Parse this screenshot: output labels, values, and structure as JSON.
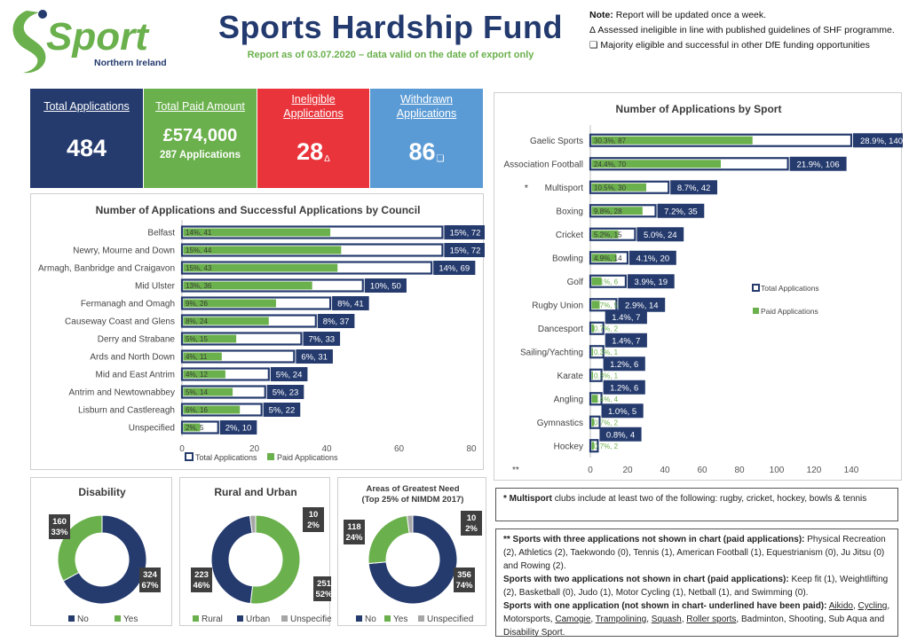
{
  "header": {
    "logo_main": "Sport",
    "logo_sub": "Northern Ireland",
    "title": "Sports Hardship Fund",
    "subtitle": "Report as of 03.07.2020 – data valid on the date of export only",
    "note_label": "Note:",
    "note_1": "Report will be updated once a week.",
    "note_2": "Δ Assessed ineligible in line with published guidelines of SHF programme.",
    "note_3": "❑ Majority eligible and successful in other DfE funding opportunities"
  },
  "kpis": {
    "total_applications_label": "Total Applications",
    "total_applications_value": "484",
    "total_paid_label": "Total Paid Amount",
    "total_paid_value": "£574,000",
    "total_paid_sub": "287 Applications",
    "ineligible_label": "Ineligible Applications",
    "ineligible_value": "28",
    "ineligible_mark": "Δ",
    "withdrawn_label": "Withdrawn Applications",
    "withdrawn_value": "86",
    "withdrawn_mark": "❑"
  },
  "colors": {
    "navy": "#253b6e",
    "green": "#6ab04c",
    "red": "#e8343a",
    "blue": "#5b9bd5",
    "grey": "#a6a6a6"
  },
  "chart_data": [
    {
      "type": "bar",
      "title": "Number of Applications and Successful Applications by Council",
      "orientation": "horizontal",
      "categories": [
        "Belfast",
        "Newry, Mourne and Down",
        "Armagh, Banbridge and Craigavon",
        "Mid Ulster",
        "Fermanagh and Omagh",
        "Causeway Coast and Glens",
        "Derry and Strabane",
        "Ards and North Down",
        "Mid and East Antrim",
        "Antrim and Newtownabbey",
        "Lisburn and Castlereagh",
        "Unspecified"
      ],
      "series": [
        {
          "name": "Total Applications",
          "values": [
            72,
            72,
            69,
            50,
            41,
            37,
            33,
            31,
            24,
            23,
            22,
            10
          ],
          "labels": [
            "15%, 72",
            "15%, 72",
            "14%, 69",
            "10%, 50",
            "8%, 41",
            "8%, 37",
            "7%, 33",
            "6%, 31",
            "5%, 24",
            "5%, 23",
            "5%, 22",
            "2%, 10"
          ]
        },
        {
          "name": "Paid Applications",
          "values": [
            41,
            44,
            43,
            36,
            26,
            24,
            15,
            11,
            12,
            14,
            16,
            5
          ],
          "labels": [
            "14%, 41",
            "15%, 44",
            "15%, 43",
            "13%, 36",
            "9%, 26",
            "8%, 24",
            "5%, 15",
            "4%, 11",
            "4%, 12",
            "5%, 14",
            "6%, 16",
            "2%, 5"
          ]
        }
      ],
      "xlim": [
        0,
        80
      ],
      "xticks": [
        0,
        20,
        40,
        60,
        80
      ],
      "legend": "bottom"
    },
    {
      "type": "bar",
      "title": "Number of Applications by Sport",
      "orientation": "horizontal",
      "categories": [
        "Gaelic Sports",
        "Association Football",
        "Multisport",
        "Boxing",
        "Cricket",
        "Bowling",
        "Golf",
        "Rugby Union",
        "Dancesport",
        "Sailing/Yachting",
        "Karate",
        "Angling",
        "Gymnastics",
        "Hockey"
      ],
      "category_prefix": [
        "",
        "",
        "*",
        "",
        "",
        "",
        "",
        "",
        "",
        "",
        "",
        "",
        "",
        ""
      ],
      "series": [
        {
          "name": "Total Applications",
          "values": [
            140,
            106,
            42,
            35,
            24,
            20,
            19,
            14,
            7,
            7,
            6,
            6,
            5,
            4
          ],
          "labels": [
            "28.9%, 140",
            "21.9%, 106",
            "8.7%, 42",
            "7.2%, 35",
            "5.0%, 24",
            "4.1%, 20",
            "3.9%, 19",
            "2.9%, 14",
            "1.4%, 7",
            "1.4%, 7",
            "1.2%, 6",
            "1.2%, 6",
            "1.0%, 5",
            "0.8%, 4"
          ]
        },
        {
          "name": "Paid Applications",
          "values": [
            87,
            70,
            30,
            28,
            15,
            14,
            6,
            5,
            2,
            1,
            1,
            4,
            2,
            2
          ],
          "labels": [
            "30.3%, 87",
            "24.4%, 70",
            "10.5%, 30",
            "9.8%, 28",
            "5.2%, 15",
            "4.9%, 14",
            "2.1%, 6",
            "1.7%, 5",
            "0.7%, 2",
            "0.3%, 1",
            "0.3%, 1",
            "1.4%, 4",
            "0.7%, 2",
            "0.7%, 2"
          ]
        }
      ],
      "xlim": [
        0,
        140
      ],
      "xticks": [
        0,
        20,
        40,
        60,
        80,
        100,
        120,
        140
      ],
      "axis_note": "**",
      "legend": "right"
    },
    {
      "type": "pie",
      "title": "Disability",
      "slices": [
        {
          "name": "No",
          "value": 324,
          "percent": "67%"
        },
        {
          "name": "Yes",
          "value": 160,
          "percent": "33%"
        }
      ],
      "legend": "bottom"
    },
    {
      "type": "pie",
      "title": "Rural and Urban",
      "slices": [
        {
          "name": "Rural",
          "value": 251,
          "percent": "52%"
        },
        {
          "name": "Urban",
          "value": 223,
          "percent": "46%"
        },
        {
          "name": "Unspecified",
          "value": 10,
          "percent": "2%"
        }
      ],
      "legend": "bottom"
    },
    {
      "type": "pie",
      "title": "Areas of Greatest Need",
      "subtitle": "(Top 25% of NIMDM 2017)",
      "slices": [
        {
          "name": "No",
          "value": 356,
          "percent": "74%"
        },
        {
          "name": "Yes",
          "value": 118,
          "percent": "24%"
        },
        {
          "name": "Unspecified",
          "value": 10,
          "percent": "2%"
        }
      ],
      "legend": "bottom"
    }
  ],
  "notes": {
    "multisport_label": "* Multisport",
    "multisport_text": "clubs include at least two of the following: rugby, cricket, hockey, bowls & tennis",
    "three_label": "** Sports with three applications not shown in chart (paid applications):",
    "three_text": "Physical Recreation (2), Athletics (2), Taekwondo (0), Tennis (1), American Football (1), Equestrianism (0), Ju Jitsu (0) and Rowing (2).",
    "two_label": "Sports with two applications not shown in chart (paid applications):",
    "two_text": "Keep fit (1), Weightlifting (2), Basketball (0), Judo (1), Motor Cycling (1), Netball (1), and Swimming (0).",
    "one_label": "Sports with one application (not shown in chart- underlined have been paid):",
    "one_sports": [
      {
        "name": "Aikido",
        "paid": true
      },
      {
        "name": "Cycling",
        "paid": true
      },
      {
        "name": "Motorsports",
        "paid": false
      },
      {
        "name": "Camogie",
        "paid": true
      },
      {
        "name": "Trampolining",
        "paid": true
      },
      {
        "name": "Squash",
        "paid": true
      },
      {
        "name": "Roller sports",
        "paid": true
      },
      {
        "name": "Badminton",
        "paid": false
      },
      {
        "name": "Shooting",
        "paid": false
      },
      {
        "name": "Sub Aqua and Disability Sport.",
        "paid": false
      }
    ]
  }
}
